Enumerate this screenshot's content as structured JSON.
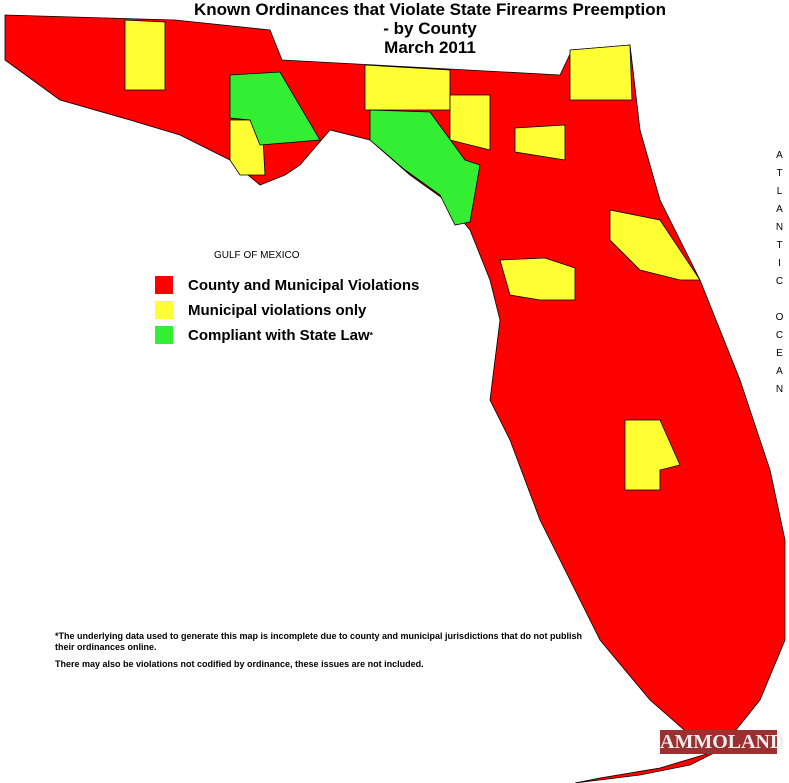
{
  "title": [
    "Known Ordinances that Violate State Firearms Preemption",
    "- by County",
    "March 2011"
  ],
  "water_labels": {
    "gulf": "GULF OF MEXICO",
    "atlantic": "ATLANTIC OCEAN"
  },
  "legend": [
    {
      "label": "County and Municipal Violations",
      "color": "#ff0000"
    },
    {
      "label": "Municipal violations only",
      "color": "#ffff33"
    },
    {
      "label": "Compliant with State Law",
      "color": "#33ee33"
    }
  ],
  "legend_note_mark": "*",
  "footnotes": [
    "*The underlying data used to generate this map is incomplete due to county and municipal jurisdictions that do not publish their ordinances online.",
    "There may also be violations not codified by ordinance, these issues are not included."
  ],
  "watermark": "AMMOLAND"
}
